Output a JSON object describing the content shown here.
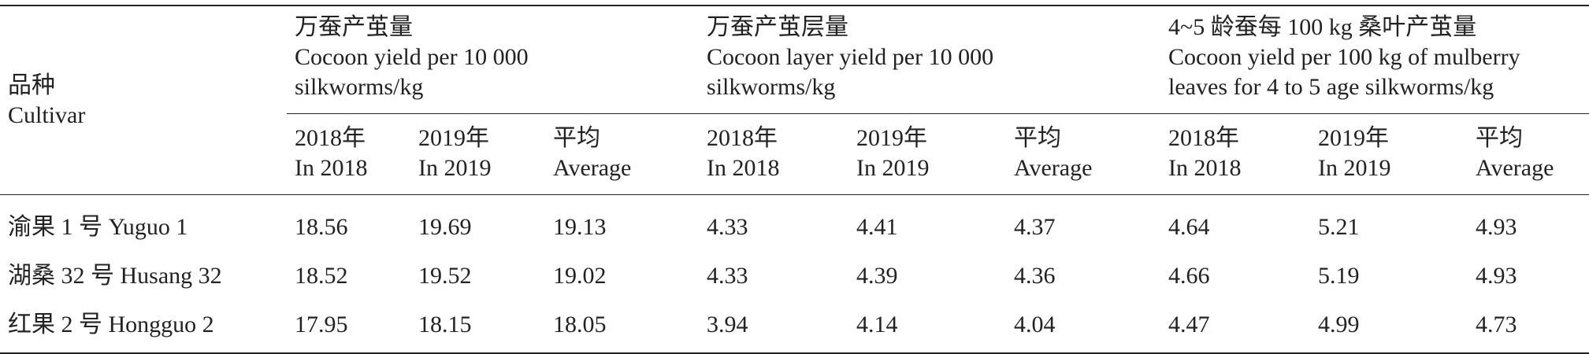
{
  "table": {
    "cultivar_header": [
      "品种",
      "Cultivar"
    ],
    "groups": [
      {
        "zh": "万蚕产茧量",
        "en_lines": [
          "Cocoon yield per 10 000",
          "silkworms/kg"
        ]
      },
      {
        "zh": "万蚕产茧层量",
        "en_lines": [
          "Cocoon layer yield per 10 000",
          "silkworms/kg"
        ]
      },
      {
        "zh": "4~5 龄蚕每 100 kg 桑叶产茧量",
        "en_lines": [
          "Cocoon yield per 100 kg of mulberry",
          "leaves for 4 to 5 age silkworms/kg"
        ]
      }
    ],
    "sub_headers": [
      [
        "2018年",
        "In 2018"
      ],
      [
        "2019年",
        "In 2019"
      ],
      [
        "平均",
        "Average"
      ],
      [
        "2018年",
        "In 2018"
      ],
      [
        "2019年",
        "In 2019"
      ],
      [
        "平均",
        "Average"
      ],
      [
        "2018年",
        "In 2018"
      ],
      [
        "2019年",
        "In 2019"
      ],
      [
        "平均",
        "Average"
      ]
    ],
    "rows": [
      [
        "渝果 1 号 Yuguo 1",
        "18.56",
        "19.69",
        "19.13",
        "4.33",
        "4.41",
        "4.37",
        "4.64",
        "5.21",
        "4.93"
      ],
      [
        "湖桑 32 号 Husang 32",
        "18.52",
        "19.52",
        "19.02",
        "4.33",
        "4.39",
        "4.36",
        "4.66",
        "5.19",
        "4.93"
      ],
      [
        "红果 2 号 Hongguo 2",
        "17.95",
        "18.15",
        "18.05",
        "3.94",
        "4.14",
        "4.04",
        "4.47",
        "4.99",
        "4.73"
      ]
    ]
  }
}
